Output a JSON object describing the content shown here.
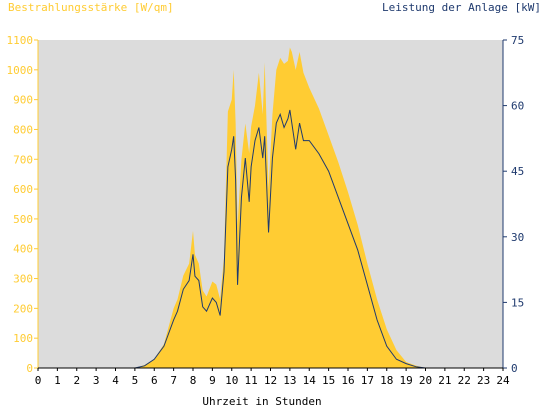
{
  "chart_data": {
    "type": "area",
    "y_left_label": "Bestrahlungsstärke [W/qm]",
    "y_right_label": "Leistung der Anlage [kW]",
    "xlabel": "Uhrzeit in Stunden",
    "xlim": [
      0,
      24
    ],
    "ylim_left": [
      0,
      1100
    ],
    "ylim_right": [
      0,
      75
    ],
    "x_ticks": [
      "0",
      "1",
      "2",
      "3",
      "4",
      "5",
      "6",
      "7",
      "8",
      "9",
      "10",
      "11",
      "12",
      "13",
      "14",
      "15",
      "16",
      "17",
      "18",
      "19",
      "20",
      "21",
      "22",
      "23",
      "24"
    ],
    "y_left_ticks": [
      "0",
      "100",
      "200",
      "300",
      "400",
      "500",
      "600",
      "700",
      "800",
      "900",
      "1000",
      "1100"
    ],
    "y_right_ticks": [
      "0",
      "15",
      "30",
      "45",
      "60",
      "75"
    ],
    "grid": false,
    "colors": {
      "plot_bg": "#dcdcdc",
      "irradiance_fill": "#ffcc33",
      "power_line": "#1f3a6e",
      "left_axis": "#ffcc33",
      "right_axis": "#1f3a6e"
    },
    "series": [
      {
        "axis": "left",
        "style": "filled-area",
        "x": [
          0,
          5,
          5.5,
          6,
          6.5,
          7,
          7.2,
          7.5,
          7.8,
          8,
          8.1,
          8.3,
          8.5,
          8.7,
          9,
          9.2,
          9.4,
          9.6,
          9.8,
          10,
          10.1,
          10.2,
          10.3,
          10.5,
          10.7,
          10.9,
          11,
          11.2,
          11.4,
          11.6,
          11.7,
          11.9,
          12.1,
          12.3,
          12.5,
          12.7,
          12.9,
          13,
          13.1,
          13.3,
          13.5,
          13.7,
          14,
          14.5,
          15,
          15.5,
          16,
          16.5,
          17,
          17.5,
          18,
          18.5,
          19,
          19.5,
          20,
          20.5,
          21,
          24
        ],
        "values": [
          0,
          0,
          10,
          30,
          80,
          200,
          230,
          310,
          350,
          460,
          380,
          350,
          260,
          240,
          290,
          280,
          230,
          370,
          860,
          900,
          1000,
          820,
          480,
          700,
          820,
          720,
          810,
          880,
          990,
          850,
          1025,
          600,
          850,
          1000,
          1040,
          1020,
          1030,
          1075,
          1060,
          1000,
          1060,
          990,
          940,
          870,
          780,
          690,
          590,
          480,
          350,
          230,
          130,
          60,
          20,
          8,
          0,
          0,
          0,
          0
        ]
      },
      {
        "axis": "right",
        "style": "line",
        "x": [
          0,
          5,
          5.5,
          6,
          6.5,
          7,
          7.2,
          7.5,
          7.8,
          8,
          8.1,
          8.3,
          8.5,
          8.7,
          9,
          9.2,
          9.4,
          9.6,
          9.8,
          10,
          10.1,
          10.2,
          10.3,
          10.5,
          10.7,
          10.9,
          11,
          11.2,
          11.4,
          11.6,
          11.7,
          11.9,
          12.1,
          12.3,
          12.5,
          12.7,
          12.9,
          13,
          13.1,
          13.3,
          13.5,
          13.7,
          14,
          14.5,
          15,
          15.5,
          16,
          16.5,
          17,
          17.5,
          18,
          18.5,
          19,
          19.5,
          20,
          20.5,
          21,
          24
        ],
        "values": [
          0,
          0,
          0.5,
          2,
          5,
          11,
          13,
          18,
          20,
          26,
          21,
          20,
          14,
          13,
          16,
          15,
          12,
          22,
          46,
          50,
          53,
          43,
          19,
          39,
          48,
          38,
          46,
          52,
          55,
          48,
          53,
          31,
          48,
          56,
          58,
          55,
          57,
          59,
          56,
          50,
          56,
          52,
          52,
          49,
          45,
          39,
          33,
          27,
          19,
          11,
          5,
          2,
          1,
          0.3,
          0,
          0,
          0,
          0
        ]
      }
    ]
  }
}
